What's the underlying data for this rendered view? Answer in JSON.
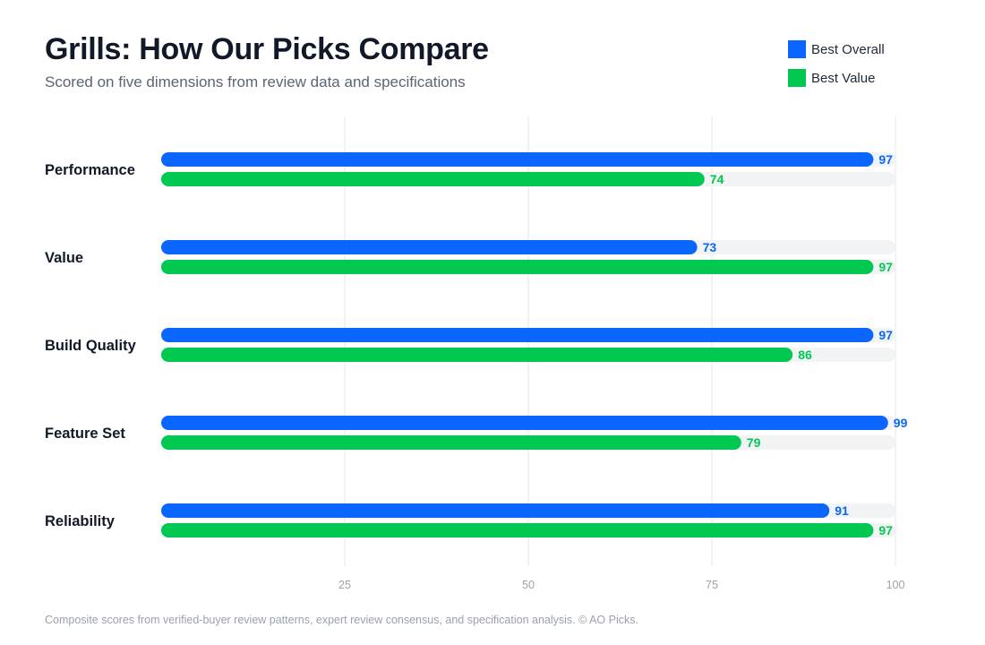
{
  "header": {
    "title": "Grills: How Our Picks Compare",
    "subtitle": "Scored on five dimensions from review data and specifications"
  },
  "footer": {
    "note": "Composite scores from verified-buyer review patterns, expert review consensus, and specification analysis. © AO Picks."
  },
  "colors": {
    "series_0": "#0a66ff",
    "series_1": "#00c851",
    "track": "#f2f3f5",
    "grid": "#e5e7eb"
  },
  "chart_data": {
    "type": "bar",
    "orientation": "horizontal",
    "categories": [
      "Performance",
      "Value",
      "Build Quality",
      "Feature Set",
      "Reliability"
    ],
    "series": [
      {
        "name": "Best Overall",
        "values": [
          97,
          73,
          97,
          99,
          91
        ]
      },
      {
        "name": "Best Value",
        "values": [
          74,
          97,
          86,
          79,
          97
        ]
      }
    ],
    "xlim": [
      0,
      100
    ],
    "xticks": [
      25,
      50,
      75,
      100
    ],
    "legend": "top-right",
    "grid": true
  }
}
